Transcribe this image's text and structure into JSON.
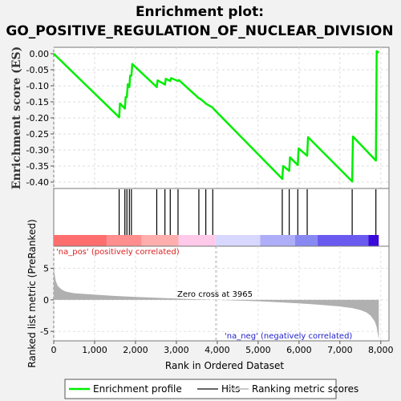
{
  "chart_data": {
    "type": "line",
    "title_line1": "Enrichment plot:",
    "title_line2": "GO_POSITIVE_REGULATION_OF_NUCLEAR_DIVISION",
    "es_ylabel": "Enrichment score (ES)",
    "rank_ylabel": "Ranked list metric (PreRanked)",
    "xlabel": "Rank in Ordered Dataset",
    "xlim": [
      0,
      8200
    ],
    "es_ylim": [
      -0.42,
      0.02
    ],
    "rank_ylim": [
      -6.5,
      8.5
    ],
    "x_ticks": [
      0,
      1000,
      2000,
      3000,
      4000,
      5000,
      6000,
      7000,
      8000
    ],
    "x_tick_labels": [
      "0",
      "1,000",
      "2,000",
      "3,000",
      "4,000",
      "5,000",
      "6,000",
      "7,000",
      "8,000"
    ],
    "es_ticks": [
      0.0,
      -0.05,
      -0.1,
      -0.15,
      -0.2,
      -0.25,
      -0.3,
      -0.35,
      -0.4
    ],
    "es_tick_labels": [
      "0.00",
      "-0.05",
      "-0.10",
      "-0.15",
      "-0.20",
      "-0.25",
      "-0.30",
      "-0.35",
      "-0.40"
    ],
    "rank_ticks": [
      5,
      0,
      -5
    ],
    "rank_tick_labels": [
      "5",
      "0",
      "-5"
    ],
    "enrichment_profile": {
      "color": "#00ee00",
      "x": [
        0,
        1600,
        1620,
        1740,
        1760,
        1790,
        1810,
        1850,
        1870,
        1900,
        1920,
        2520,
        2540,
        2720,
        2740,
        2850,
        2870,
        3040,
        3060,
        3550,
        3580,
        3720,
        3740,
        3890,
        3910,
        5590,
        5610,
        5760,
        5780,
        5970,
        5990,
        6200,
        6220,
        7300,
        7320,
        7880,
        7900,
        7950
      ],
      "y": [
        0.0,
        -0.198,
        -0.155,
        -0.171,
        -0.135,
        -0.135,
        -0.095,
        -0.104,
        -0.068,
        -0.068,
        -0.032,
        -0.104,
        -0.083,
        -0.096,
        -0.078,
        -0.085,
        -0.076,
        -0.085,
        -0.082,
        -0.139,
        -0.14,
        -0.155,
        -0.157,
        -0.168,
        -0.172,
        -0.39,
        -0.35,
        -0.365,
        -0.323,
        -0.347,
        -0.295,
        -0.318,
        -0.26,
        -0.398,
        -0.258,
        -0.333,
        0.008,
        0.003
      ]
    },
    "hits": [
      1600,
      1740,
      1790,
      1850,
      1900,
      2520,
      2720,
      2850,
      3040,
      3550,
      3720,
      3890,
      5590,
      5760,
      5970,
      6200,
      7300,
      7880
    ],
    "ranking_metric": {
      "color": "#b0b0b0",
      "x": [
        0,
        20,
        50,
        100,
        200,
        300,
        500,
        1000,
        1500,
        2000,
        2500,
        3000,
        3500,
        3965,
        4500,
        5000,
        5500,
        6000,
        6500,
        7000,
        7300,
        7500,
        7650,
        7750,
        7850,
        7900,
        7950
      ],
      "y": [
        6.2,
        4.2,
        3.0,
        2.2,
        1.6,
        1.3,
        1.05,
        0.82,
        0.62,
        0.45,
        0.32,
        0.2,
        0.1,
        0.0,
        -0.1,
        -0.22,
        -0.38,
        -0.55,
        -0.78,
        -1.05,
        -1.3,
        -1.6,
        -2.0,
        -2.5,
        -3.4,
        -4.3,
        -6.3
      ]
    },
    "color_bar": [
      {
        "x0": 0,
        "x1": 1300,
        "color": "#ff6e6e"
      },
      {
        "x0": 1300,
        "x1": 2150,
        "color": "#ff8e8e"
      },
      {
        "x0": 2150,
        "x1": 3050,
        "color": "#ffaeae"
      },
      {
        "x0": 3050,
        "x1": 3950,
        "color": "#ffcaea"
      },
      {
        "x0": 3950,
        "x1": 5050,
        "color": "#d8d8ff"
      },
      {
        "x0": 5050,
        "x1": 5900,
        "color": "#aeaef8"
      },
      {
        "x0": 5900,
        "x1": 6450,
        "color": "#8888f2"
      },
      {
        "x0": 6450,
        "x1": 7700,
        "color": "#6a5af0"
      },
      {
        "x0": 7700,
        "x1": 7950,
        "color": "#3a0ad8"
      }
    ],
    "zero_cross_label": "Zero cross at 3965",
    "zero_cross_x": 3965,
    "pos_label": "'na_pos' (positively correlated)",
    "neg_label": "'na_neg' (negatively correlated)",
    "pos_color": "#dd2222",
    "neg_color": "#2222cc",
    "legend": [
      {
        "label": "Enrichment profile",
        "color": "#00ee00",
        "kind": "line"
      },
      {
        "label": "Hits",
        "color": "#666666",
        "kind": "line"
      },
      {
        "label": "Ranking metric scores",
        "color": "#c8c8c8",
        "kind": "line"
      }
    ]
  }
}
